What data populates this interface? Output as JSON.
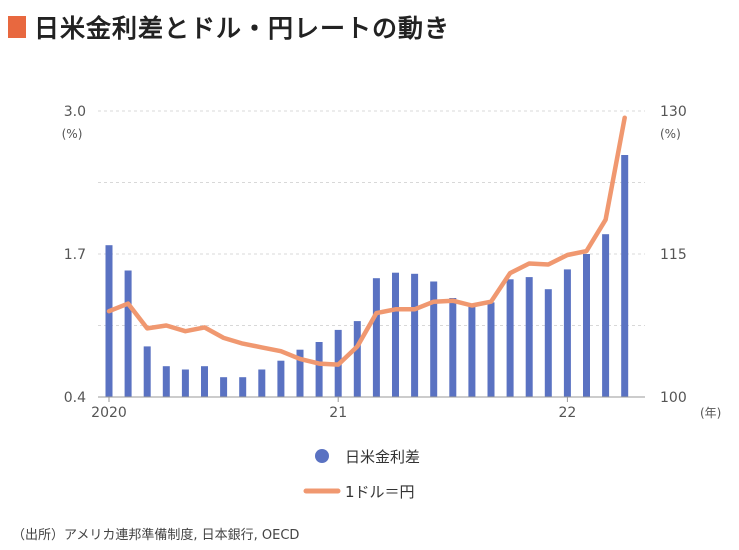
{
  "title": "日米金利差とドル・円レートの動き",
  "accent_color": "#e8683f",
  "source": "（出所）アメリカ連邦準備制度, 日本銀行, OECD",
  "chart_data": {
    "type": "bar+line",
    "title": "日米金利差とドル・円レートの動き",
    "left_axis": {
      "ticks": [
        "3.0",
        "1.7",
        "0.4"
      ],
      "tick_values": [
        3.0,
        1.7,
        0.4
      ],
      "unit": "(%)",
      "ylim": [
        0.4,
        3.0
      ]
    },
    "right_axis": {
      "ticks": [
        "130",
        "115",
        "100"
      ],
      "tick_values": [
        130,
        115,
        100
      ],
      "unit": "(%)",
      "ylim": [
        100,
        130
      ]
    },
    "x_axis": {
      "tick_labels": [
        "2020",
        "21",
        "22"
      ],
      "tick_index": [
        0,
        12,
        24
      ],
      "unit": "(年)"
    },
    "grid": true,
    "legend_position": "bottom",
    "series": [
      {
        "name": "日米金利差",
        "type": "bar",
        "axis": "left",
        "color": "#5a72c2",
        "values": [
          1.78,
          1.55,
          0.86,
          0.68,
          0.65,
          0.68,
          0.58,
          0.58,
          0.65,
          0.73,
          0.83,
          0.9,
          1.01,
          1.09,
          1.48,
          1.53,
          1.52,
          1.45,
          1.3,
          1.22,
          1.26,
          1.47,
          1.49,
          1.38,
          1.56,
          1.7,
          1.88,
          2.6
        ]
      },
      {
        "name": "1ドル＝円",
        "type": "line",
        "axis": "right",
        "color": "#f09870",
        "values": [
          109.0,
          109.8,
          107.2,
          107.5,
          106.9,
          107.3,
          106.2,
          105.6,
          105.2,
          104.8,
          104.0,
          103.5,
          103.4,
          105.3,
          108.8,
          109.2,
          109.2,
          110.0,
          110.1,
          109.6,
          110.0,
          113.0,
          114.0,
          113.9,
          114.9,
          115.3,
          118.6,
          129.3
        ]
      }
    ]
  }
}
